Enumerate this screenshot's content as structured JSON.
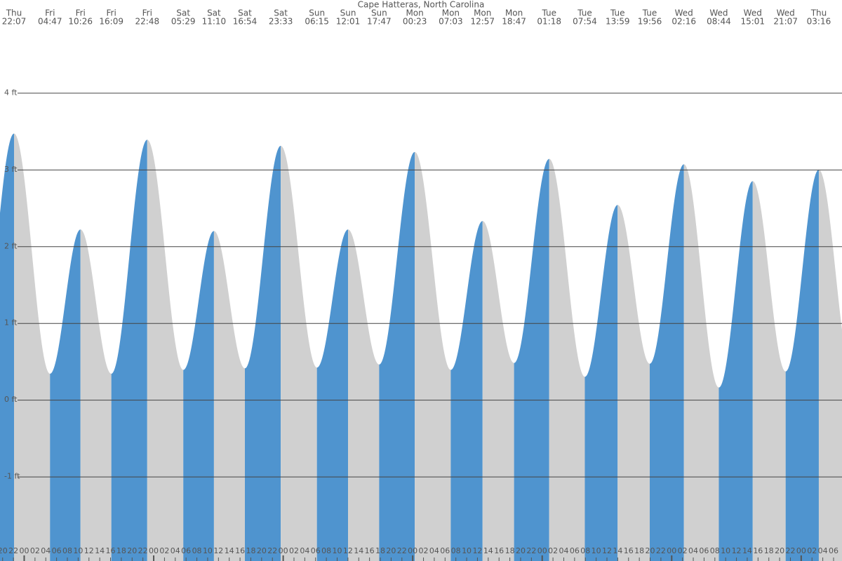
{
  "chart_data": {
    "type": "tide",
    "title": "Cape Hatteras, North Carolina",
    "days": [
      "Thu",
      "Fri",
      "Fri",
      "Fri",
      "Fri",
      "Sat",
      "Sat",
      "Sat",
      "Sat",
      "Sun",
      "Sun",
      "Sun",
      "Mon",
      "Mon",
      "Mon",
      "Mon",
      "Tue",
      "Tue",
      "Tue",
      "Tue",
      "Wed",
      "Wed",
      "Wed",
      "Wed",
      "Thu"
    ],
    "times": [
      "22:07",
      "04:47",
      "10:26",
      "16:09",
      "22:48",
      "05:29",
      "11:10",
      "16:54",
      "23:33",
      "06:15",
      "12:01",
      "17:47",
      "00:23",
      "07:03",
      "12:57",
      "18:47",
      "01:18",
      "07:54",
      "13:59",
      "19:56",
      "02:16",
      "08:44",
      "15:01",
      "21:07",
      "03:16"
    ],
    "values": [
      3.47,
      0.34,
      2.22,
      0.34,
      3.39,
      0.39,
      2.2,
      0.41,
      3.31,
      0.42,
      2.22,
      0.46,
      3.23,
      0.39,
      2.33,
      0.48,
      3.14,
      0.3,
      2.54,
      0.47,
      3.07,
      0.16,
      2.85,
      0.37,
      3.0
    ],
    "rising_color": "#4f94cf",
    "falling_color": "#d0d0d0",
    "ylim": [
      -2.1,
      5.21
    ],
    "yticks": [
      {
        "value": 4,
        "label": "4 ft"
      },
      {
        "value": 3,
        "label": "3 ft"
      },
      {
        "value": 2,
        "label": "2 ft"
      },
      {
        "value": 1,
        "label": "1 ft"
      },
      {
        "value": 0,
        "label": "0 ft"
      },
      {
        "value": -1,
        "label": "-1 ft"
      }
    ],
    "grid": true,
    "hour_ticks": [
      "20",
      "22",
      "00",
      "02",
      "04",
      "06",
      "08",
      "10",
      "12",
      "14",
      "16",
      "18",
      "20",
      "22",
      "00",
      "02",
      "04",
      "06",
      "08",
      "10",
      "12",
      "14",
      "16",
      "18",
      "20",
      "22",
      "00",
      "02",
      "04",
      "06",
      "08",
      "10",
      "12",
      "14",
      "16",
      "18",
      "20",
      "22",
      "00",
      "02",
      "04",
      "06",
      "08",
      "10",
      "12",
      "14",
      "16",
      "18",
      "20",
      "22",
      "00",
      "02",
      "04",
      "06",
      "08",
      "10",
      "12",
      "14",
      "16",
      "18",
      "20",
      "22",
      "00",
      "02",
      "04",
      "06",
      "08",
      "10",
      "12",
      "14",
      "16",
      "18",
      "20",
      "22",
      "00",
      "02",
      "04",
      "06"
    ]
  }
}
